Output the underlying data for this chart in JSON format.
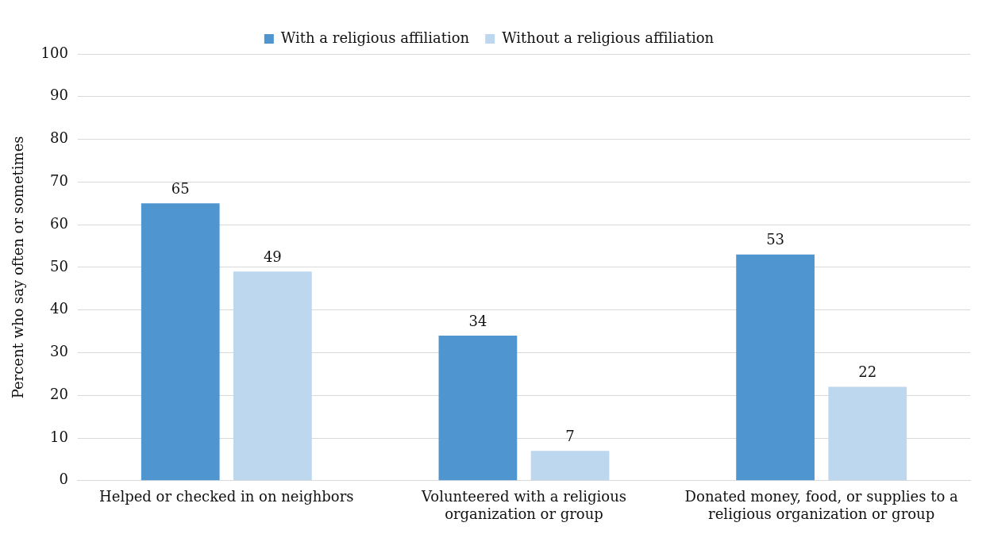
{
  "chart_data": {
    "type": "bar",
    "ylabel": "Percent who say often or sometimes",
    "categories": [
      "Helped or checked in on neighbors",
      "Volunteered with a religious organization or group",
      "Donated money, food, or supplies to a religious organization or group"
    ],
    "series": [
      {
        "name": "With a religious affiliation",
        "color": "#4f96d0",
        "values": [
          65,
          34,
          53
        ]
      },
      {
        "name": "Without a religious affiliation",
        "color": "#bdd7ee",
        "values": [
          49,
          7,
          22
        ]
      }
    ],
    "ylim": [
      0,
      100
    ],
    "yticks": [
      0,
      10,
      20,
      30,
      40,
      50,
      60,
      70,
      80,
      90,
      100
    ],
    "grid": "y",
    "legend": "top",
    "data_labels": true
  }
}
